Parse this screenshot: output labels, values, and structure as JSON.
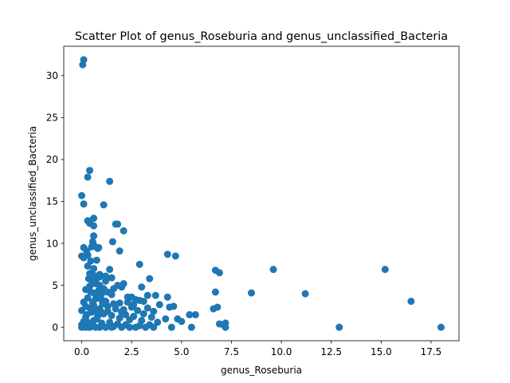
{
  "chart_data": {
    "type": "scatter",
    "title": "Scatter Plot of genus_Roseburia and genus_unclassified_Bacteria",
    "xlabel": "genus_Roseburia",
    "ylabel": "genus_unclassified_Bacteria",
    "xlim": [
      -0.9,
      18.9
    ],
    "ylim": [
      -1.6,
      33.5
    ],
    "xticks": [
      0,
      2.5,
      5,
      7.5,
      10,
      12.5,
      15,
      17.5
    ],
    "xtick_labels": [
      "0.0",
      "2.5",
      "5.0",
      "7.5",
      "10.0",
      "12.5",
      "15.0",
      "17.5"
    ],
    "yticks": [
      0,
      5,
      10,
      15,
      20,
      25,
      30
    ],
    "ytick_labels": [
      "0",
      "5",
      "10",
      "15",
      "20",
      "25",
      "30"
    ],
    "grid": false,
    "color": "#1f77b4",
    "series": [
      {
        "name": "genus_unclassified_Bacteria",
        "points": [
          [
            0.05,
            31.3
          ],
          [
            0.1,
            31.9
          ],
          [
            0.4,
            18.7
          ],
          [
            0.3,
            17.9
          ],
          [
            1.4,
            17.4
          ],
          [
            0.0,
            15.7
          ],
          [
            0.1,
            14.7
          ],
          [
            1.1,
            14.6
          ],
          [
            0.3,
            12.7
          ],
          [
            0.4,
            12.4
          ],
          [
            0.6,
            13.0
          ],
          [
            0.6,
            12.1
          ],
          [
            1.7,
            12.3
          ],
          [
            1.8,
            12.3
          ],
          [
            2.1,
            11.5
          ],
          [
            0.6,
            10.9
          ],
          [
            0.55,
            10.2
          ],
          [
            1.55,
            10.2
          ],
          [
            0.5,
            9.6
          ],
          [
            0.6,
            9.8
          ],
          [
            0.1,
            9.5
          ],
          [
            0.25,
            9.1
          ],
          [
            1.9,
            9.1
          ],
          [
            0.0,
            8.5
          ],
          [
            0.1,
            8.3
          ],
          [
            0.3,
            8.6
          ],
          [
            0.45,
            7.9
          ],
          [
            0.75,
            8.0
          ],
          [
            0.8,
            9.4
          ],
          [
            0.85,
            9.5
          ],
          [
            2.9,
            7.5
          ],
          [
            4.3,
            8.7
          ],
          [
            4.7,
            8.5
          ],
          [
            1.4,
            6.9
          ],
          [
            0.6,
            7.0
          ],
          [
            0.3,
            7.3
          ],
          [
            6.7,
            6.8
          ],
          [
            6.9,
            6.5
          ],
          [
            9.6,
            6.9
          ],
          [
            15.2,
            6.9
          ],
          [
            0.9,
            6.3
          ],
          [
            1.2,
            6.1
          ],
          [
            1.5,
            5.9
          ],
          [
            3.4,
            5.8
          ],
          [
            0.35,
            5.8
          ],
          [
            0.5,
            5.6
          ],
          [
            0.7,
            5.5
          ],
          [
            2.1,
            5.2
          ],
          [
            1.8,
            5.0
          ],
          [
            2.0,
            4.8
          ],
          [
            3.0,
            4.8
          ],
          [
            6.7,
            4.2
          ],
          [
            8.5,
            4.1
          ],
          [
            11.2,
            4.0
          ],
          [
            3.3,
            3.8
          ],
          [
            3.7,
            3.8
          ],
          [
            4.3,
            3.6
          ],
          [
            2.5,
            3.6
          ],
          [
            0.2,
            4.5
          ],
          [
            0.4,
            4.9
          ],
          [
            0.9,
            5.0
          ],
          [
            1.1,
            4.6
          ],
          [
            1.3,
            4.2
          ],
          [
            1.5,
            3.9
          ],
          [
            0.6,
            4.1
          ],
          [
            0.8,
            3.7
          ],
          [
            16.5,
            3.1
          ],
          [
            2.7,
            3.3
          ],
          [
            2.9,
            3.2
          ],
          [
            3.1,
            3.1
          ],
          [
            2.3,
            3.0
          ],
          [
            1.9,
            2.9
          ],
          [
            1.6,
            2.8
          ],
          [
            1.2,
            3.1
          ],
          [
            1.0,
            3.3
          ],
          [
            0.7,
            3.4
          ],
          [
            0.3,
            3.5
          ],
          [
            0.1,
            3.0
          ],
          [
            3.9,
            2.7
          ],
          [
            4.4,
            2.4
          ],
          [
            4.6,
            2.5
          ],
          [
            6.6,
            2.2
          ],
          [
            6.8,
            2.4
          ],
          [
            0.2,
            2.5
          ],
          [
            0.0,
            2.0
          ],
          [
            0.4,
            2.3
          ],
          [
            0.6,
            2.6
          ],
          [
            0.9,
            2.2
          ],
          [
            1.3,
            2.5
          ],
          [
            1.7,
            2.2
          ],
          [
            2.1,
            2.1
          ],
          [
            2.5,
            2.4
          ],
          [
            2.8,
            2.0
          ],
          [
            3.3,
            2.3
          ],
          [
            3.6,
            1.9
          ],
          [
            0.5,
            1.8
          ],
          [
            1.1,
            1.6
          ],
          [
            1.5,
            1.4
          ],
          [
            2.2,
            1.5
          ],
          [
            2.6,
            1.3
          ],
          [
            3.1,
            1.6
          ],
          [
            3.5,
            1.2
          ],
          [
            4.2,
            1.0
          ],
          [
            4.8,
            1.0
          ],
          [
            5.0,
            0.7
          ],
          [
            5.4,
            1.5
          ],
          [
            5.7,
            1.5
          ],
          [
            0.2,
            1.2
          ],
          [
            0.8,
            1.3
          ],
          [
            1.9,
            1.1
          ],
          [
            2.4,
            0.9
          ],
          [
            3.0,
            0.8
          ],
          [
            3.8,
            0.6
          ],
          [
            0.1,
            0.7
          ],
          [
            0.6,
            0.8
          ],
          [
            1.0,
            0.5
          ],
          [
            1.4,
            0.6
          ],
          [
            1.8,
            0.4
          ],
          [
            2.2,
            0.3
          ],
          [
            2.9,
            0.2
          ],
          [
            3.4,
            0.3
          ],
          [
            0.0,
            0.3
          ],
          [
            0.3,
            0.2
          ],
          [
            0.5,
            0.1
          ],
          [
            0.9,
            0.0
          ],
          [
            1.2,
            0.0
          ],
          [
            1.6,
            0.1
          ],
          [
            2.0,
            0.0
          ],
          [
            2.7,
            0.0
          ],
          [
            3.2,
            0.0
          ],
          [
            3.6,
            0.0
          ],
          [
            4.5,
            0.0
          ],
          [
            5.5,
            0.0
          ],
          [
            6.9,
            0.4
          ],
          [
            7.1,
            0.3
          ],
          [
            7.2,
            0.5
          ],
          [
            7.2,
            0.0
          ],
          [
            12.9,
            0.0
          ],
          [
            18.0,
            0.0
          ],
          [
            0.0,
            0.0
          ],
          [
            0.2,
            0.0
          ],
          [
            0.4,
            0.0
          ],
          [
            0.7,
            0.0
          ],
          [
            1.5,
            0.0
          ],
          [
            2.4,
            0.0
          ],
          [
            0.55,
            3.0
          ],
          [
            0.65,
            2.0
          ],
          [
            0.75,
            1.0
          ],
          [
            0.45,
            4.2
          ],
          [
            0.85,
            4.4
          ],
          [
            1.0,
            4.0
          ],
          [
            0.3,
            0.6
          ],
          [
            0.5,
            0.4
          ],
          [
            1.3,
            1.9
          ],
          [
            1.05,
            2.8
          ],
          [
            0.95,
            1.9
          ],
          [
            0.25,
            1.5
          ],
          [
            0.7,
            5.2
          ],
          [
            0.6,
            6.2
          ],
          [
            0.4,
            6.4
          ],
          [
            0.9,
            6.0
          ],
          [
            1.2,
            5.5
          ],
          [
            1.6,
            4.6
          ],
          [
            2.3,
            3.6
          ],
          [
            2.0,
            1.8
          ],
          [
            2.6,
            2.7
          ]
        ]
      }
    ]
  }
}
